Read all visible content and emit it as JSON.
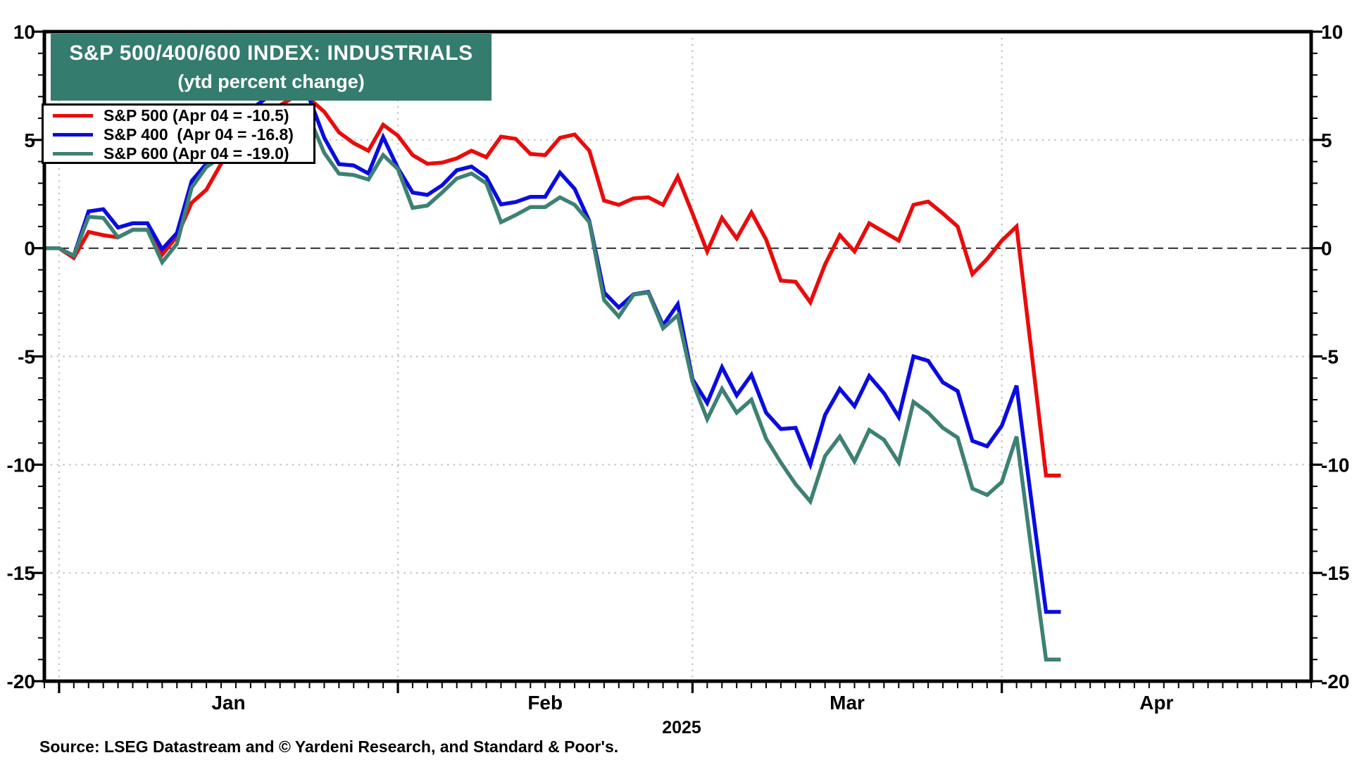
{
  "title": {
    "line1": "S&P 500/400/600 INDEX: INDUSTRIALS",
    "line2": "(ytd percent change)"
  },
  "legend": {
    "items": [
      {
        "label": "S&P 500 (Apr 04 = -10.5)",
        "series": "S&P 500",
        "color": "#ea0b0b"
      },
      {
        "label": "S&P 400  (Apr 04 = -16.8)",
        "series": "S&P 400",
        "color": "#0b0be0"
      },
      {
        "label": "S&P 600 (Apr 04 = -19.0)",
        "series": "S&P 600",
        "color": "#3d8173"
      }
    ]
  },
  "x_axis": {
    "months": [
      "Jan",
      "Feb",
      "Mar",
      "Apr"
    ],
    "year": "2025"
  },
  "y_axis": {
    "major_ticks": [
      10,
      5,
      0,
      -5,
      -10,
      -15,
      -20
    ],
    "min": -20,
    "max": 10,
    "minor_step": 1
  },
  "source_note": "Source: LSEG Datastream and © Yardeni Research, and Standard & Poor's.",
  "colors": {
    "banner_bg": "#337c6e",
    "banner_text": "#ffffff",
    "grid_dotted": "#c9c9c9",
    "zero_line": "#000000",
    "axis": "#000000",
    "background": "#ffffff"
  },
  "chart_data": {
    "type": "line",
    "title": "S&P 500/400/600 INDEX: INDUSTRIALS",
    "subtitle": "(ytd percent change)",
    "ylabel": "ytd percent change",
    "ylim": [
      -20,
      10
    ],
    "grid": "dotted horizontal at -15,-10,-5,5; dotted vertical at month starts; thin dashed line at 0",
    "legend_position": "top-left",
    "x_slots_total": 87,
    "month_gridline_slots": [
      1,
      24,
      44,
      65
    ],
    "month_label_slots": [
      12.5,
      34,
      54.5,
      75.5
    ],
    "dates": [
      "Dec 31",
      "Jan 1",
      "Jan 2",
      "Jan 3",
      "Jan 6",
      "Jan 7",
      "Jan 8",
      "Jan 9",
      "Jan 10",
      "Jan 13",
      "Jan 14",
      "Jan 15",
      "Jan 16",
      "Jan 17",
      "Jan 20",
      "Jan 21",
      "Jan 22",
      "Jan 23",
      "Jan 24",
      "Jan 27",
      "Jan 28",
      "Jan 29",
      "Jan 30",
      "Jan 31",
      "Feb 3",
      "Feb 4",
      "Feb 5",
      "Feb 6",
      "Feb 7",
      "Feb 10",
      "Feb 11",
      "Feb 12",
      "Feb 13",
      "Feb 14",
      "Feb 17",
      "Feb 18",
      "Feb 19",
      "Feb 20",
      "Feb 21",
      "Feb 24",
      "Feb 25",
      "Feb 26",
      "Feb 27",
      "Feb 28",
      "Mar 3",
      "Mar 4",
      "Mar 5",
      "Mar 6",
      "Mar 7",
      "Mar 10",
      "Mar 11",
      "Mar 12",
      "Mar 13",
      "Mar 14",
      "Mar 17",
      "Mar 18",
      "Mar 19",
      "Mar 20",
      "Mar 21",
      "Mar 24",
      "Mar 25",
      "Mar 26",
      "Mar 27",
      "Mar 28",
      "Mar 31",
      "Apr 1",
      "Apr 2",
      "Apr 3",
      "Apr 4"
    ],
    "series": [
      {
        "name": "S&P 500",
        "last_point_label": "Apr 04 = -10.5",
        "color": "#ea0b0b",
        "values": [
          0.0,
          0.0,
          -0.45,
          0.75,
          0.6,
          0.5,
          0.85,
          0.85,
          -0.3,
          0.55,
          2.1,
          2.7,
          3.9,
          5.0,
          5.6,
          6.2,
          6.6,
          7.0,
          6.9,
          6.3,
          5.35,
          4.85,
          4.5,
          5.7,
          5.2,
          4.3,
          3.9,
          3.95,
          4.15,
          4.5,
          4.2,
          5.15,
          5.05,
          4.35,
          4.3,
          5.1,
          5.25,
          4.5,
          2.2,
          2.0,
          2.3,
          2.35,
          2.0,
          3.3,
          1.6,
          -0.15,
          1.4,
          0.45,
          1.65,
          0.4,
          -1.5,
          -1.55,
          -2.5,
          -0.75,
          0.6,
          -0.15,
          1.15,
          0.75,
          0.35,
          2.0,
          2.15,
          1.6,
          1.0,
          -1.2,
          -0.5,
          0.35,
          1.0,
          -4.7,
          -10.5
        ]
      },
      {
        "name": "S&P 400",
        "last_point_label": "Apr 04 = -16.8",
        "color": "#0b0be0",
        "values": [
          0.0,
          0.0,
          -0.35,
          1.7,
          1.8,
          0.95,
          1.15,
          1.15,
          -0.05,
          0.7,
          3.1,
          3.9,
          4.4,
          5.6,
          6.4,
          6.9,
          7.1,
          7.0,
          6.9,
          5.1,
          3.88,
          3.82,
          3.45,
          5.13,
          3.7,
          2.57,
          2.46,
          2.9,
          3.6,
          3.77,
          3.28,
          2.02,
          2.13,
          2.37,
          2.37,
          3.49,
          2.74,
          1.24,
          -2.05,
          -2.74,
          -2.13,
          -2.02,
          -3.57,
          -2.59,
          -6.05,
          -7.15,
          -5.5,
          -6.8,
          -5.85,
          -7.6,
          -8.35,
          -8.3,
          -10.0,
          -7.7,
          -6.5,
          -7.3,
          -5.9,
          -6.7,
          -7.8,
          -5.0,
          -5.2,
          -6.2,
          -6.6,
          -8.9,
          -9.15,
          -8.2,
          -6.35,
          -11.6,
          -16.8
        ]
      },
      {
        "name": "S&P 600",
        "last_point_label": "Apr 04 = -19.0",
        "color": "#3d8173",
        "values": [
          0.0,
          0.0,
          -0.35,
          1.45,
          1.4,
          0.5,
          0.85,
          0.85,
          -0.65,
          0.2,
          2.8,
          3.75,
          4.2,
          5.2,
          5.8,
          6.2,
          6.4,
          6.3,
          6.0,
          4.4,
          3.44,
          3.38,
          3.17,
          4.3,
          3.66,
          1.86,
          1.97,
          2.57,
          3.22,
          3.45,
          3.0,
          1.2,
          1.53,
          1.9,
          1.9,
          2.35,
          2.0,
          1.2,
          -2.4,
          -3.16,
          -2.15,
          -2.05,
          -3.7,
          -3.1,
          -6.16,
          -7.9,
          -6.5,
          -7.6,
          -7.0,
          -8.8,
          -9.9,
          -10.9,
          -11.7,
          -9.6,
          -8.7,
          -9.85,
          -8.4,
          -8.85,
          -9.9,
          -7.1,
          -7.6,
          -8.3,
          -8.75,
          -11.1,
          -11.4,
          -10.8,
          -8.7,
          -13.9,
          -19.0
        ]
      }
    ]
  }
}
